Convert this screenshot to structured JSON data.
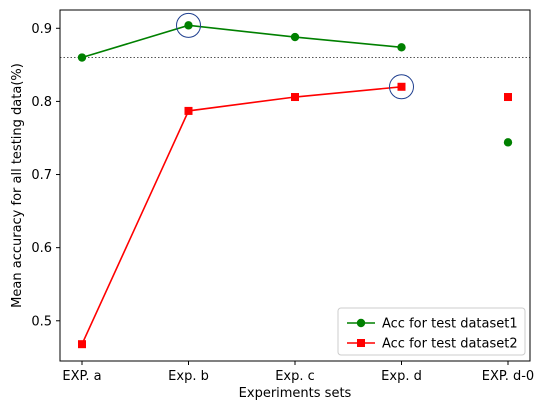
{
  "chart_data": {
    "type": "line",
    "categories": [
      "EXP. a",
      "Exp. b",
      "Exp. c",
      "Exp. d",
      "EXP. d-0"
    ],
    "xlabel": "Experiments sets",
    "ylabel": "Mean accuracy for all testing data(%)",
    "ylim": [
      0.445,
      0.925
    ],
    "yticks": [
      0.5,
      0.6,
      0.7,
      0.8,
      0.9
    ],
    "grid": false,
    "legend_position": "bottom-right",
    "reference_line": {
      "y": 0.86,
      "style": "dotted",
      "color": "#555555"
    },
    "series": [
      {
        "name": "Acc for test dataset1",
        "color": "#008000",
        "marker": "circle",
        "values": [
          0.86,
          0.904,
          0.888,
          0.874,
          null
        ],
        "isolated_points": [
          {
            "category": "EXP. d-0",
            "value": 0.744
          }
        ]
      },
      {
        "name": "Acc for test dataset2",
        "color": "#ff0000",
        "marker": "square",
        "values": [
          0.468,
          0.787,
          0.806,
          0.82,
          null
        ],
        "isolated_points": [
          {
            "category": "EXP. d-0",
            "value": 0.806
          }
        ]
      }
    ],
    "highlights": [
      {
        "category": "Exp. b",
        "value": 0.904,
        "color": "#1f3f8f"
      },
      {
        "category": "Exp. d",
        "value": 0.82,
        "color": "#1f3f8f"
      }
    ]
  }
}
